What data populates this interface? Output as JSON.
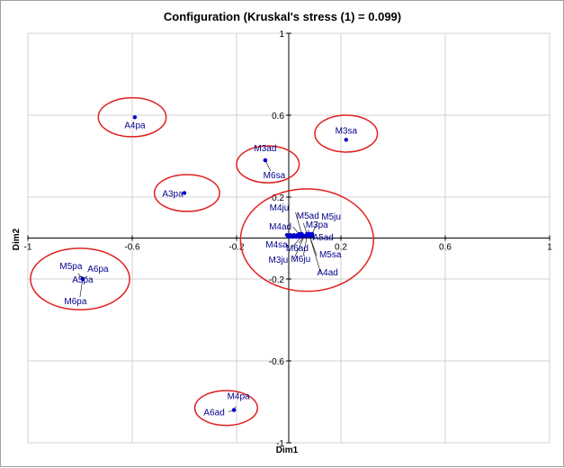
{
  "chart_data": {
    "type": "scatter",
    "title": "Configuration (Kruskal's stress (1) = 0.099)",
    "xlabel": "Dim1",
    "ylabel": "Dim2",
    "xlim": [
      -1,
      1
    ],
    "ylim": [
      -1,
      1
    ],
    "xticks": [
      "-1",
      "-0.6",
      "-0.2",
      "0.2",
      "0.6",
      "1"
    ],
    "yticks": [
      "1",
      "0.6",
      "0.2",
      "-0.2",
      "-0.6",
      "-1"
    ],
    "grid": true,
    "point_color": "#0000cc",
    "label_color": "#00008b",
    "ellipse_color": "#e02020",
    "points": [
      {
        "label": "A4pa",
        "x": -0.59,
        "y": 0.59
      },
      {
        "label": "M3sa",
        "x": 0.22,
        "y": 0.48
      },
      {
        "label": "M3ad",
        "x": -0.09,
        "y": 0.38
      },
      {
        "label": "M6sa",
        "x": -0.09,
        "y": 0.38
      },
      {
        "label": "A3pa",
        "x": -0.4,
        "y": 0.22
      },
      {
        "label": "M4ju",
        "x": 0.05,
        "y": 0.02
      },
      {
        "label": "M5ad",
        "x": 0.07,
        "y": 0.02
      },
      {
        "label": "M5ju",
        "x": 0.09,
        "y": 0.02
      },
      {
        "label": "M4ad",
        "x": 0.04,
        "y": 0.02
      },
      {
        "label": "M3pa",
        "x": 0.08,
        "y": 0.02
      },
      {
        "label": "A5ad",
        "x": 0.09,
        "y": 0.01
      },
      {
        "label": "M4sa",
        "x": 0.05,
        "y": 0.01
      },
      {
        "label": "M6ad",
        "x": 0.06,
        "y": 0.01
      },
      {
        "label": "M5sa",
        "x": 0.08,
        "y": 0.01
      },
      {
        "label": "M3ju",
        "x": 0.06,
        "y": 0.01
      },
      {
        "label": "M6ju",
        "x": 0.07,
        "y": 0.01
      },
      {
        "label": "A4ad",
        "x": 0.08,
        "y": 0.01
      },
      {
        "label": "M5pa",
        "x": -0.79,
        "y": -0.2
      },
      {
        "label": "A6pa",
        "x": -0.79,
        "y": -0.2
      },
      {
        "label": "A5pa",
        "x": -0.79,
        "y": -0.2
      },
      {
        "label": "M6pa",
        "x": -0.79,
        "y": -0.2
      },
      {
        "label": "M4pa",
        "x": -0.21,
        "y": -0.84
      },
      {
        "label": "A6ad",
        "x": -0.21,
        "y": -0.84
      }
    ],
    "clusters": [
      {
        "members": [
          "A4pa"
        ],
        "cx": -0.6,
        "cy": 0.59,
        "rx": 0.13,
        "ry": 0.095
      },
      {
        "members": [
          "M3sa"
        ],
        "cx": 0.22,
        "cy": 0.51,
        "rx": 0.12,
        "ry": 0.09
      },
      {
        "members": [
          "M3ad",
          "M6sa"
        ],
        "cx": -0.08,
        "cy": 0.36,
        "rx": 0.12,
        "ry": 0.09
      },
      {
        "members": [
          "A3pa"
        ],
        "cx": -0.39,
        "cy": 0.22,
        "rx": 0.125,
        "ry": 0.09
      },
      {
        "members": [
          "M4ju",
          "M5ad",
          "M5ju",
          "M4ad",
          "M3pa",
          "A5ad",
          "M4sa",
          "M6ad",
          "M5sa",
          "M3ju",
          "M6ju",
          "A4ad"
        ],
        "cx": 0.07,
        "cy": -0.01,
        "rx": 0.255,
        "ry": 0.25
      },
      {
        "members": [
          "M5pa",
          "A6pa",
          "A5pa",
          "M6pa"
        ],
        "cx": -0.8,
        "cy": -0.2,
        "rx": 0.19,
        "ry": 0.15
      },
      {
        "members": [
          "M4pa",
          "A6ad"
        ],
        "cx": -0.24,
        "cy": -0.83,
        "rx": 0.12,
        "ry": 0.085
      }
    ]
  }
}
